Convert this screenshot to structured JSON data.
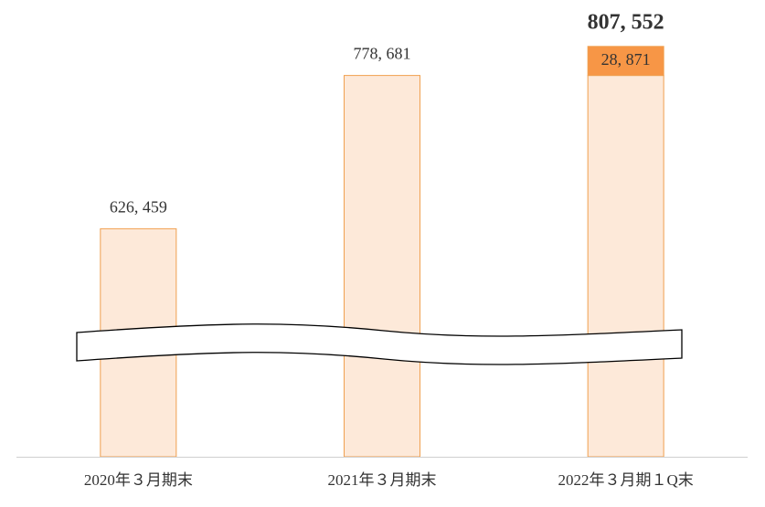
{
  "chart_data": {
    "type": "stacked_bar",
    "categories": [
      "2020年３月期末",
      "2021年３月期末",
      "2022年３月期１Q末"
    ],
    "series": [
      {
        "color": "#fde9d9",
        "values": [
          626459,
          778681,
          778681
        ],
        "value_labels": [
          "626, 459",
          "778, 681",
          null
        ]
      },
      {
        "color": "#f79646",
        "values": [
          null,
          null,
          28871
        ],
        "value_labels": [
          null,
          null,
          "28, 871"
        ]
      }
    ],
    "total_value": 807552,
    "total_label": "807, 552",
    "ylim": [
      400000,
      850000
    ],
    "axis_break": true
  }
}
